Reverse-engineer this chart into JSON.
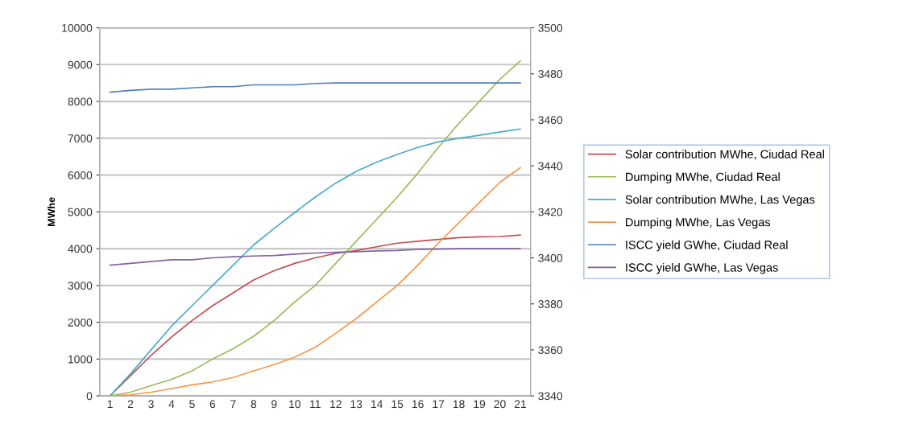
{
  "chart_data": {
    "type": "line",
    "ylabel": "MWhe",
    "categories": [
      "1",
      "2",
      "3",
      "4",
      "5",
      "6",
      "7",
      "8",
      "9",
      "10",
      "11",
      "12",
      "13",
      "14",
      "15",
      "16",
      "17",
      "18",
      "19",
      "20",
      "21"
    ],
    "ylim": [
      0,
      10000
    ],
    "yticks": [
      0,
      1000,
      2000,
      3000,
      4000,
      5000,
      6000,
      7000,
      8000,
      9000,
      10000
    ],
    "y2lim": [
      3340,
      3500
    ],
    "y2ticks": [
      3340,
      3360,
      3380,
      3400,
      3420,
      3440,
      3460,
      3480,
      3500
    ],
    "grid": "y",
    "legend": "right",
    "marker": "none",
    "line_style": "solid",
    "series": [
      {
        "name": "Solar contribution MWhe, Ciudad Real",
        "color": "#c0504d",
        "values": [
          0,
          550,
          1100,
          1600,
          2050,
          2450,
          2800,
          3150,
          3400,
          3600,
          3750,
          3870,
          3950,
          4050,
          4150,
          4200,
          4250,
          4300,
          4320,
          4330,
          4370
        ]
      },
      {
        "name": "Dumping MWhe, Ciudad Real",
        "color": "#9bbb59",
        "values": [
          0,
          100,
          280,
          450,
          680,
          1000,
          1280,
          1620,
          2050,
          2550,
          3000,
          3600,
          4200,
          4800,
          5400,
          6050,
          6750,
          7400,
          8000,
          8600,
          9100
        ]
      },
      {
        "name": "Solar contribution MWhe, Las Vegas",
        "color": "#4bacc6",
        "values": [
          0,
          600,
          1250,
          1900,
          2450,
          3000,
          3550,
          4100,
          4550,
          4980,
          5400,
          5780,
          6100,
          6350,
          6560,
          6750,
          6900,
          7000,
          7080,
          7170,
          7250
        ]
      },
      {
        "name": "Dumping MWhe, Las Vegas",
        "color": "#f79646",
        "values": [
          0,
          30,
          100,
          200,
          300,
          380,
          500,
          680,
          850,
          1050,
          1320,
          1700,
          2100,
          2550,
          3000,
          3550,
          4150,
          4700,
          5250,
          5800,
          6200
        ]
      },
      {
        "name": "ISCC yield GWhe, Ciudad Real",
        "color": "#4f81bd",
        "axis": "y2",
        "values": [
          3472,
          3472.8,
          3473.3,
          3473.3,
          3473.9,
          3474.4,
          3474.4,
          3475.2,
          3475.2,
          3475.2,
          3475.8,
          3476,
          3476,
          3476,
          3476,
          3476,
          3476,
          3476,
          3476,
          3476,
          3476
        ]
      },
      {
        "name": "ISCC yield GWhe, Las Vegas",
        "color": "#8064a2",
        "axis": "y2",
        "values": [
          3396.8,
          3397.6,
          3398.4,
          3399.2,
          3399.2,
          3400,
          3400.5,
          3400.8,
          3401,
          3401.6,
          3402.1,
          3402.4,
          3402.7,
          3403,
          3403.2,
          3403.7,
          3403.8,
          3404,
          3404,
          3404,
          3404
        ]
      }
    ]
  }
}
